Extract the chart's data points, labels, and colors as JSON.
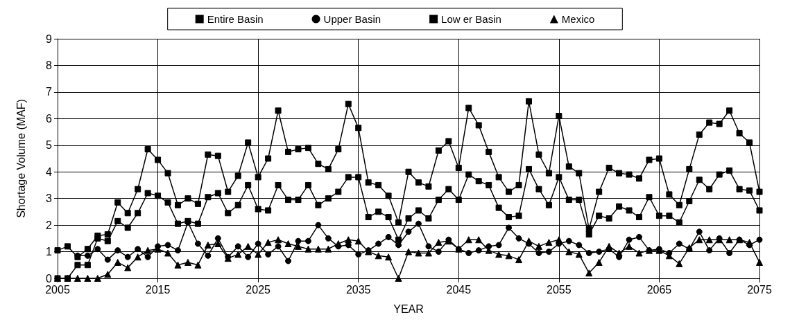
{
  "chart_data": {
    "type": "line",
    "xlabel": "YEAR",
    "ylabel": "Shortage Volume (MAF)",
    "x": [
      2005,
      2006,
      2007,
      2008,
      2009,
      2010,
      2011,
      2012,
      2013,
      2014,
      2015,
      2016,
      2017,
      2018,
      2019,
      2020,
      2021,
      2022,
      2023,
      2024,
      2025,
      2026,
      2027,
      2028,
      2029,
      2030,
      2031,
      2032,
      2033,
      2034,
      2035,
      2036,
      2037,
      2038,
      2039,
      2040,
      2041,
      2042,
      2043,
      2044,
      2045,
      2046,
      2047,
      2048,
      2049,
      2050,
      2051,
      2052,
      2053,
      2054,
      2055,
      2056,
      2057,
      2058,
      2059,
      2060,
      2061,
      2062,
      2063,
      2064,
      2065,
      2066,
      2067,
      2068,
      2069,
      2070,
      2071,
      2072,
      2073,
      2074,
      2075
    ],
    "xlim": [
      2005,
      2075
    ],
    "xticks": [
      2005,
      2015,
      2025,
      2035,
      2045,
      2055,
      2065,
      2075
    ],
    "ylim": [
      0,
      9
    ],
    "yticks": [
      0,
      1,
      2,
      3,
      4,
      5,
      6,
      7,
      8,
      9
    ],
    "grid": true,
    "legend": "top",
    "line_style": "solid",
    "series": [
      {
        "name": "Entire Basin",
        "color": "#000000",
        "marker": "square",
        "values": [
          1.05,
          1.2,
          0.8,
          1.1,
          1.6,
          1.65,
          2.85,
          2.45,
          3.35,
          4.85,
          4.45,
          3.95,
          2.75,
          3.0,
          2.8,
          4.65,
          4.6,
          3.25,
          3.85,
          5.1,
          3.8,
          4.5,
          6.3,
          4.75,
          4.85,
          4.9,
          4.3,
          4.1,
          4.85,
          6.55,
          5.65,
          3.6,
          3.5,
          3.1,
          2.1,
          4.0,
          3.6,
          3.45,
          4.8,
          5.15,
          4.15,
          6.4,
          5.75,
          4.75,
          3.8,
          3.25,
          3.5,
          6.65,
          4.65,
          3.95,
          6.1,
          4.2,
          3.95,
          1.85,
          3.25,
          4.15,
          3.95,
          3.9,
          3.75,
          4.45,
          4.5,
          3.15,
          2.75,
          4.1,
          5.4,
          5.85,
          5.8,
          6.3,
          5.45,
          5.1,
          3.25
        ]
      },
      {
        "name": "Upper Basin",
        "color": "#000000",
        "marker": "circle",
        "values": [
          null,
          null,
          0.85,
          0.85,
          1.1,
          0.7,
          1.05,
          0.8,
          1.1,
          0.8,
          1.2,
          1.25,
          1.05,
          2.1,
          1.3,
          0.85,
          1.5,
          0.8,
          1.2,
          0.8,
          1.3,
          0.9,
          1.2,
          0.65,
          1.4,
          1.4,
          2.0,
          1.5,
          1.2,
          1.25,
          0.9,
          1.05,
          1.3,
          1.55,
          1.25,
          1.75,
          2.05,
          1.2,
          1.0,
          1.45,
          1.1,
          0.95,
          1.05,
          1.2,
          1.25,
          1.9,
          1.5,
          1.3,
          0.95,
          1.0,
          1.3,
          1.4,
          1.25,
          0.95,
          1.0,
          1.1,
          0.8,
          1.45,
          1.55,
          1.05,
          1.1,
          0.95,
          1.3,
          1.1,
          1.75,
          1.05,
          1.5,
          0.95,
          1.45,
          1.25,
          1.45
        ]
      },
      {
        "name": "Low er Basin",
        "color": "#000000",
        "marker": "square",
        "values": [
          0,
          0,
          0.5,
          0.5,
          1.5,
          1.4,
          2.15,
          1.9,
          2.45,
          3.2,
          3.1,
          2.85,
          2.05,
          2.15,
          2.05,
          3.05,
          3.2,
          2.45,
          2.75,
          3.5,
          2.6,
          2.55,
          3.5,
          2.95,
          2.95,
          3.5,
          2.75,
          3.0,
          3.25,
          3.8,
          3.8,
          2.3,
          2.5,
          2.3,
          1.45,
          2.25,
          2.55,
          2.25,
          2.95,
          3.35,
          2.95,
          3.9,
          3.65,
          3.5,
          2.65,
          2.3,
          2.35,
          4.1,
          3.35,
          2.75,
          3.8,
          2.95,
          2.95,
          1.65,
          2.35,
          2.25,
          2.7,
          2.55,
          2.3,
          3.05,
          2.35,
          2.35,
          2.1,
          2.9,
          3.7,
          3.35,
          3.9,
          4.05,
          3.35,
          3.3,
          2.55
        ]
      },
      {
        "name": "Mexico",
        "color": "#000000",
        "marker": "triangle",
        "values": [
          0,
          0,
          0,
          0,
          0,
          0.15,
          0.6,
          0.4,
          0.8,
          1.05,
          1.1,
          0.95,
          0.5,
          0.6,
          0.5,
          1.25,
          1.3,
          0.75,
          0.9,
          1.2,
          0.9,
          1.35,
          1.45,
          1.3,
          1.2,
          1.1,
          1.1,
          1.1,
          1.3,
          1.45,
          1.4,
          1.0,
          0.85,
          0.8,
          0,
          1.0,
          0.95,
          0.95,
          1.35,
          1.4,
          1.1,
          1.45,
          1.45,
          1.05,
          0.9,
          0.85,
          0.7,
          1.4,
          1.2,
          1.35,
          1.45,
          1.0,
          0.9,
          0.2,
          0.6,
          1.2,
          0.95,
          1.2,
          0.95,
          1.05,
          1.05,
          0.85,
          0.55,
          1.15,
          1.45,
          1.45,
          1.45,
          1.45,
          1.45,
          1.35,
          0.6
        ]
      }
    ]
  }
}
